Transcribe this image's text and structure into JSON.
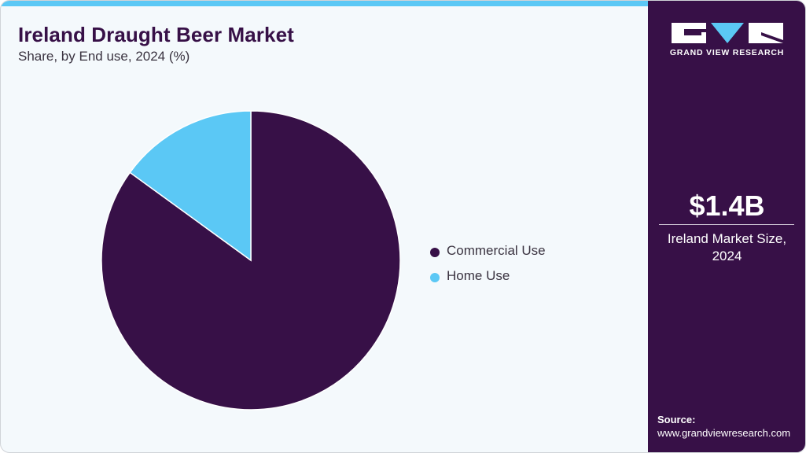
{
  "header": {
    "title": "Ireland Draught Beer Market",
    "subtitle": "Share, by End use, 2024 (%)"
  },
  "colors": {
    "accent": "#5bc8f5",
    "primary": "#371047",
    "background": "#f4f9fc"
  },
  "chart_data": {
    "type": "pie",
    "title": "Ireland Draught Beer Market",
    "subtitle": "Share, by End use, 2024 (%)",
    "categories": [
      "Commercial Use",
      "Home Use"
    ],
    "values": [
      85,
      15
    ],
    "colors": [
      "#371047",
      "#5bc8f5"
    ],
    "start_angle": "12 o'clock",
    "direction": "clockwise",
    "legend_position": "right"
  },
  "legend": {
    "items": [
      {
        "label": "Commercial Use",
        "color": "#371047"
      },
      {
        "label": "Home Use",
        "color": "#5bc8f5"
      }
    ]
  },
  "sidebar": {
    "brand": "GRAND VIEW RESEARCH",
    "market_value": "$1.4B",
    "market_label_line1": "Ireland Market Size,",
    "market_label_line2": "2024",
    "source_heading": "Source:",
    "source_url": "www.grandviewresearch.com"
  }
}
